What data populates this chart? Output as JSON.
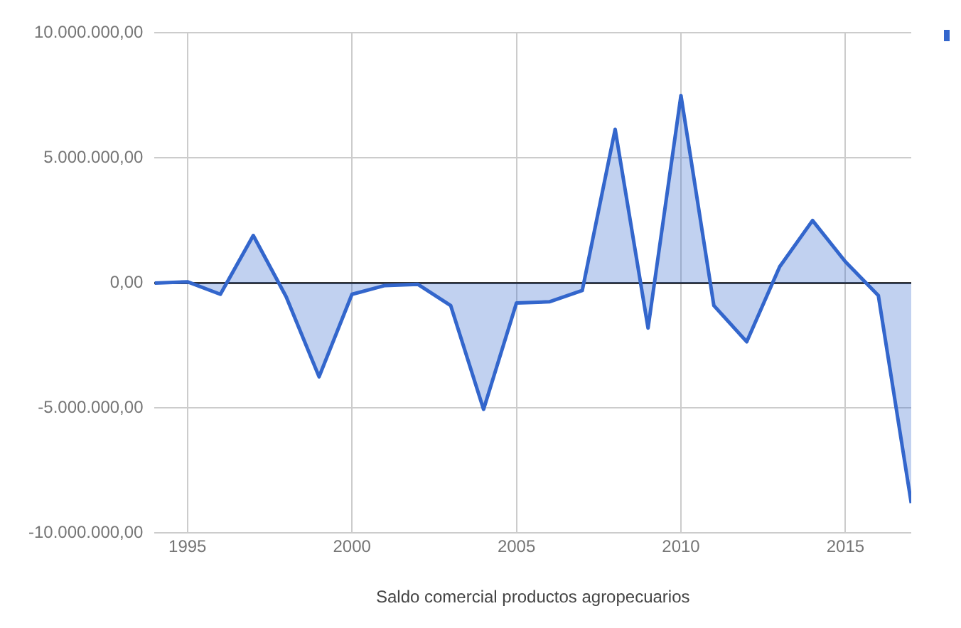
{
  "chart_data": {
    "type": "area",
    "xlabel": "Saldo comercial productos agropecuarios",
    "x": [
      1994,
      1995,
      1996,
      1997,
      1998,
      1999,
      2000,
      2001,
      2002,
      2003,
      2004,
      2005,
      2006,
      2007,
      2008,
      2009,
      2010,
      2011,
      2012,
      2013,
      2014,
      2015,
      2016,
      2017
    ],
    "series": [
      {
        "color": "#3366cc",
        "values": [
          0.0,
          50000,
          -450000,
          1900000,
          -550000,
          -3750000,
          -450000,
          -100000,
          -50000,
          -900000,
          -5050000,
          -800000,
          -750000,
          -300000,
          6150000,
          -1800000,
          7500000,
          -900000,
          -2350000,
          650000,
          2500000,
          850000,
          -500000,
          -8800000
        ]
      }
    ],
    "xlim": [
      1994,
      2017
    ],
    "xticks": [
      1995,
      2000,
      2005,
      2010,
      2015
    ],
    "ylim": [
      -10000000,
      10000000
    ],
    "yticks": [
      {
        "value": -10000000,
        "label": "-10.000.000,00"
      },
      {
        "value": -5000000,
        "label": "-5.000.000,00"
      },
      {
        "value": 0,
        "label": "0,00"
      },
      {
        "value": 5000000,
        "label": "5.000.000,00"
      },
      {
        "value": 10000000,
        "label": "10.000.000,00"
      }
    ],
    "grid": true,
    "legend": false
  }
}
